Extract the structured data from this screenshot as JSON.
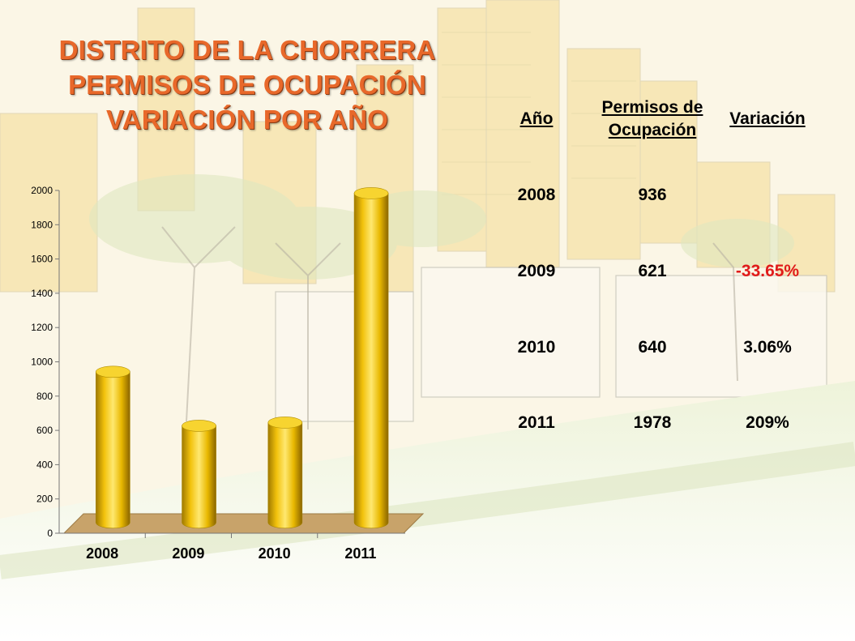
{
  "title": {
    "line1": "DISTRITO DE LA CHORRERA",
    "line2": "PERMISOS DE OCUPACIÓN",
    "line3": "VARIACIÓN POR AÑO"
  },
  "colors": {
    "title": "#e8682a",
    "bar": "#f2c20c",
    "negative": "#e01b1b",
    "floor": "#c8a36a"
  },
  "table": {
    "headers": {
      "year": "Año",
      "permits_line1": "Permisos de",
      "permits_line2": "Ocupación",
      "variation": "Variación"
    },
    "rows": [
      {
        "year": "2008",
        "permits": "936",
        "variation": ""
      },
      {
        "year": "2009",
        "permits": "621",
        "variation": "-33.65%"
      },
      {
        "year": "2010",
        "permits": "640",
        "variation": "3.06%"
      },
      {
        "year": "2011",
        "permits": "1978",
        "variation": "209%"
      }
    ]
  },
  "chart_data": {
    "type": "bar",
    "categories": [
      "2008",
      "2009",
      "2010",
      "2011"
    ],
    "values": [
      936,
      621,
      640,
      1978
    ],
    "ylim": [
      0,
      2000
    ],
    "yticks": [
      "0",
      "200",
      "400",
      "600",
      "800",
      "1000",
      "1200",
      "1400",
      "1600",
      "1800",
      "2000"
    ],
    "title": "",
    "xlabel": "",
    "ylabel": "",
    "grid": false,
    "style": "3d-cylinder"
  }
}
